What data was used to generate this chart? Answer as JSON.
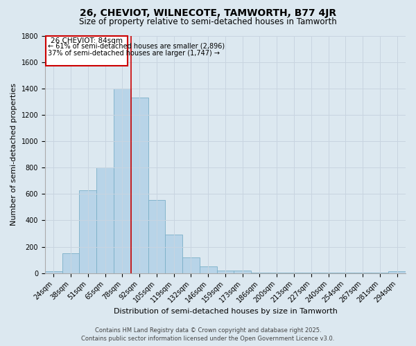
{
  "title": "26, CHEVIOT, WILNECOTE, TAMWORTH, B77 4JR",
  "subtitle": "Size of property relative to semi-detached houses in Tamworth",
  "xlabel": "Distribution of semi-detached houses by size in Tamworth",
  "ylabel": "Number of semi-detached properties",
  "categories": [
    "24sqm",
    "38sqm",
    "51sqm",
    "65sqm",
    "78sqm",
    "92sqm",
    "105sqm",
    "119sqm",
    "132sqm",
    "146sqm",
    "159sqm",
    "173sqm",
    "186sqm",
    "200sqm",
    "213sqm",
    "227sqm",
    "240sqm",
    "254sqm",
    "267sqm",
    "281sqm",
    "294sqm"
  ],
  "values": [
    12,
    150,
    630,
    800,
    1400,
    1330,
    555,
    290,
    120,
    50,
    20,
    18,
    5,
    5,
    2,
    2,
    2,
    2,
    2,
    2,
    15
  ],
  "bar_color": "#b8d4e8",
  "bar_edge_color": "#7aafc8",
  "annotation_title": "26 CHEVIOT: 84sqm",
  "annotation_line1": "← 61% of semi-detached houses are smaller (2,896)",
  "annotation_line2": "37% of semi-detached houses are larger (1,747) →",
  "annotation_box_facecolor": "#ffffff",
  "annotation_box_edgecolor": "#cc0000",
  "vline_color": "#cc0000",
  "vline_position": 4.5,
  "ylim": [
    0,
    1800
  ],
  "yticks": [
    0,
    200,
    400,
    600,
    800,
    1000,
    1200,
    1400,
    1600,
    1800
  ],
  "grid_color": "#c8d4e0",
  "bg_color": "#dce8f0",
  "footer1": "Contains HM Land Registry data © Crown copyright and database right 2025.",
  "footer2": "Contains public sector information licensed under the Open Government Licence v3.0.",
  "title_fontsize": 10,
  "subtitle_fontsize": 8.5,
  "axis_label_fontsize": 8,
  "tick_fontsize": 7,
  "footer_fontsize": 6,
  "annotation_fontsize": 7.5
}
